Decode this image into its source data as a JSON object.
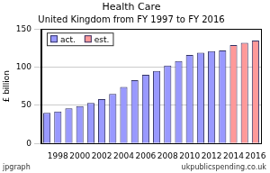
{
  "chart_data": {
    "type": "bar",
    "title": "Health Care",
    "subtitle": "United Kingdom from FY 1997 to FY 2016",
    "ylabel": "£ billion",
    "categories": [
      null,
      "1998",
      null,
      "2000",
      null,
      "2002",
      null,
      "2004",
      null,
      "2006",
      null,
      "2008",
      null,
      "2010",
      null,
      "2012",
      null,
      "2014",
      null,
      "2016"
    ],
    "series": [
      {
        "name": "act.",
        "color": "#9999ff",
        "values": [
          40,
          42,
          46,
          49,
          53,
          58,
          65,
          74,
          83,
          90,
          95,
          102,
          108,
          116,
          119,
          121,
          122,
          null,
          null,
          null
        ]
      },
      {
        "name": "est.",
        "color": "#ff9999",
        "values": [
          null,
          null,
          null,
          null,
          null,
          null,
          null,
          null,
          null,
          null,
          null,
          null,
          null,
          null,
          null,
          null,
          null,
          129,
          132,
          135
        ]
      }
    ],
    "ylim": [
      0,
      150
    ],
    "yticks": [
      0,
      50,
      100,
      150
    ],
    "grid": true,
    "legend": "upper left",
    "annotations": [
      "jpgraph",
      "ukpublicspending.co.uk"
    ]
  }
}
